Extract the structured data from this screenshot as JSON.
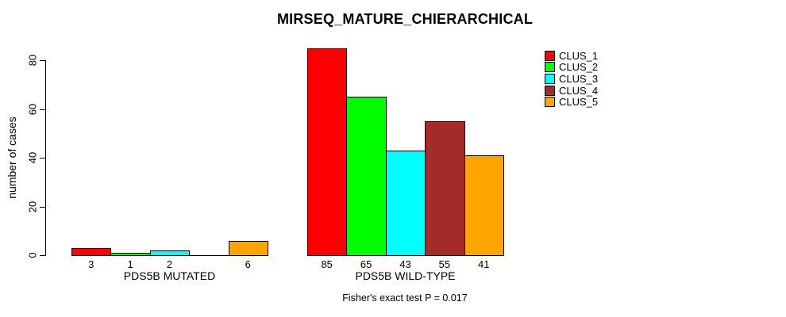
{
  "chart_data": {
    "type": "bar",
    "title": "MIRSEQ_MATURE_CHIERARCHICAL",
    "ylabel": "number of cases",
    "xlabel": "",
    "ylim": [
      0,
      85
    ],
    "yticks": [
      0,
      20,
      40,
      60,
      80
    ],
    "grid": false,
    "categories": [
      "PDS5B MUTATED",
      "PDS5B WILD-TYPE"
    ],
    "series": [
      {
        "name": "CLUS_1",
        "color": "#FF0000",
        "values": [
          3,
          85
        ]
      },
      {
        "name": "CLUS_2",
        "color": "#00FF00",
        "values": [
          1,
          65
        ]
      },
      {
        "name": "CLUS_3",
        "color": "#00FFFF",
        "values": [
          2,
          43
        ]
      },
      {
        "name": "CLUS_4",
        "color": "#A52A2A",
        "values": [
          0,
          55
        ]
      },
      {
        "name": "CLUS_5",
        "color": "#FFA500",
        "values": [
          6,
          41
        ]
      }
    ],
    "bar_value_labels": [
      [
        "3",
        "1",
        "2",
        "",
        "6"
      ],
      [
        "85",
        "65",
        "43",
        "55",
        "41"
      ]
    ],
    "legend": {
      "position": "top-right",
      "entries": [
        "CLUS_1",
        "CLUS_2",
        "CLUS_3",
        "CLUS_4",
        "CLUS_5"
      ]
    },
    "annotation": "Fisher's exact test P = 0.017",
    "colors": {
      "background": "#FFFFFF",
      "axis": "#000000",
      "text": "#000000"
    }
  }
}
